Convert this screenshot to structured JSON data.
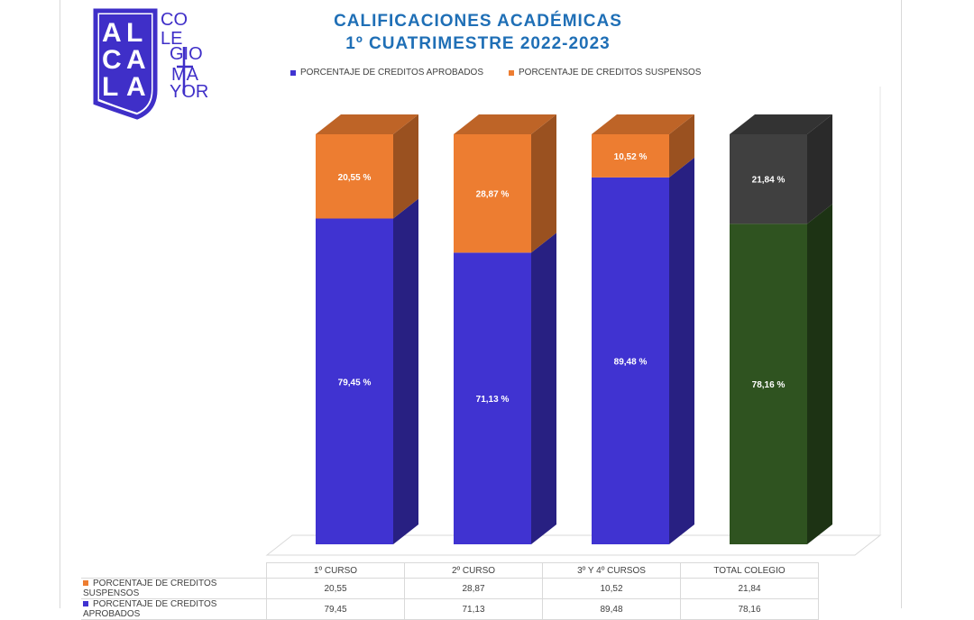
{
  "title_line1": "CALIFICACIONES ACADÉMICAS",
  "title_line2": "1º CUATRIMESTRE 2022-2023",
  "logo": {
    "letters": [
      "A",
      "L",
      "C",
      "A",
      "L",
      "A"
    ],
    "words": [
      "CO",
      "LE",
      "GIO",
      "MA",
      "YOR"
    ],
    "color": "#3f2fc8"
  },
  "colors": {
    "aprobados": "#4033d1",
    "suspensos": "#ed7d31",
    "total_aprobados": "#2f5320",
    "total_suspensos": "#404040"
  },
  "chart_data": {
    "type": "bar",
    "stacked": true,
    "three_d": true,
    "categories": [
      "1º CURSO",
      "2º CURSO",
      "3º Y 4º CURSOS",
      "TOTAL COLEGIO"
    ],
    "series": [
      {
        "name": "PORCENTAJE DE CREDITOS APROBADOS",
        "values": [
          79.45,
          71.13,
          89.48,
          78.16
        ],
        "labels": [
          "79,45 %",
          "71,13 %",
          "89,48 %",
          "78,16 %"
        ],
        "table_values": [
          "79,45",
          "71,13",
          "89,48",
          "78,16"
        ]
      },
      {
        "name": "PORCENTAJE DE CREDITOS SUSPENSOS",
        "values": [
          20.55,
          28.87,
          10.52,
          21.84
        ],
        "labels": [
          "20,55 %",
          "28,87 %",
          "10,52 %",
          "21,84 %"
        ],
        "table_values": [
          "20,55",
          "28,87",
          "10,52",
          "21,84"
        ]
      }
    ],
    "ylim": [
      0,
      100
    ],
    "legend_position": "top",
    "data_table": true,
    "grid": false
  }
}
